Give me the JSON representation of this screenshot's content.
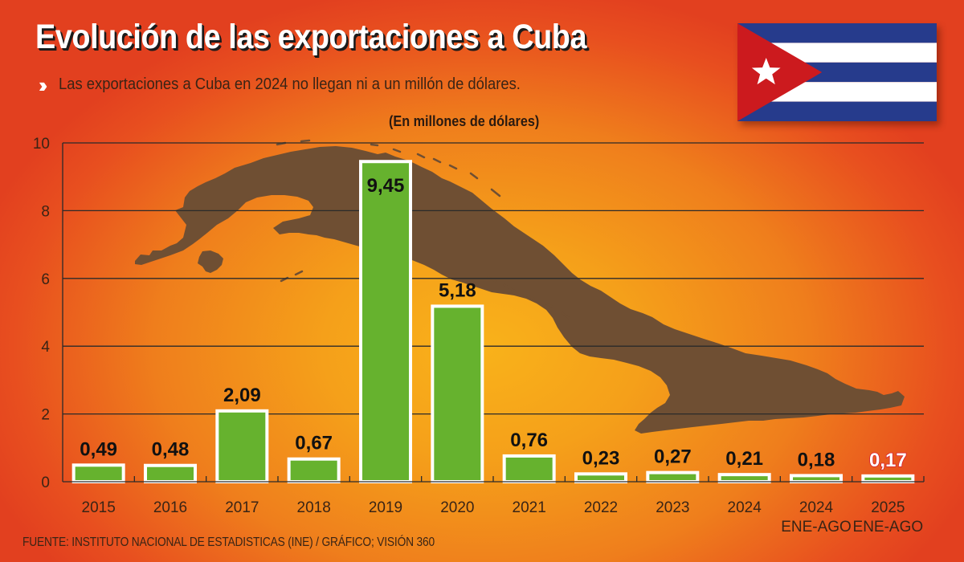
{
  "header": {
    "title": "Evolución de las exportaciones a Cuba",
    "subtitle": "Las exportaciones a Cuba en 2024 no llegan ni a un millón de dólares.",
    "bullet_icon": "double-chevron-right-icon",
    "unit_note": "(En millones de dólares)"
  },
  "flag": {
    "name": "cuba-flag",
    "colors": {
      "blue": "#263b8c",
      "white": "#ffffff",
      "red": "#cc1a1e"
    }
  },
  "colors": {
    "bar_fill": "#66b22e",
    "bar_border": "#ffffff",
    "map": "#6f4f33",
    "grid": "#2a2a2a",
    "highlight_label_stroke": "#d41f2e"
  },
  "chart_data": {
    "type": "bar",
    "title": "Evolución de las exportaciones a Cuba",
    "subtitle": "(En millones de dólares)",
    "xlabel": "",
    "ylabel": "Millones de dólares",
    "ylim": [
      0,
      10
    ],
    "yticks": [
      0,
      2,
      4,
      6,
      8,
      10
    ],
    "grid": true,
    "categories": [
      "2015",
      "2016",
      "2017",
      "2018",
      "2019",
      "2020",
      "2021",
      "2022",
      "2023",
      "2024",
      "2024 ENE-AGO",
      "2025 ENE-AGO"
    ],
    "category_lines": [
      [
        "2015"
      ],
      [
        "2016"
      ],
      [
        "2017"
      ],
      [
        "2018"
      ],
      [
        "2019"
      ],
      [
        "2020"
      ],
      [
        "2021"
      ],
      [
        "2022"
      ],
      [
        "2023"
      ],
      [
        "2024"
      ],
      [
        "2024",
        "ENE-AGO"
      ],
      [
        "2025",
        "ENE-AGO"
      ]
    ],
    "values": [
      0.49,
      0.48,
      2.09,
      0.67,
      9.45,
      5.18,
      0.76,
      0.23,
      0.27,
      0.21,
      0.18,
      0.17
    ],
    "labels": [
      "0,49",
      "0,48",
      "2,09",
      "0,67",
      "9,45",
      "5,18",
      "0,76",
      "0,23",
      "0,27",
      "0,21",
      "0,18",
      "0,17"
    ],
    "highlighted": [
      "2025 ENE-AGO"
    ],
    "background_image": "Cuba map silhouette"
  },
  "footer": {
    "source": "FUENTE: INSTITUTO NACIONAL DE ESTADISTICAS (INE) / GRÁFICO; VISIÓN 360"
  }
}
